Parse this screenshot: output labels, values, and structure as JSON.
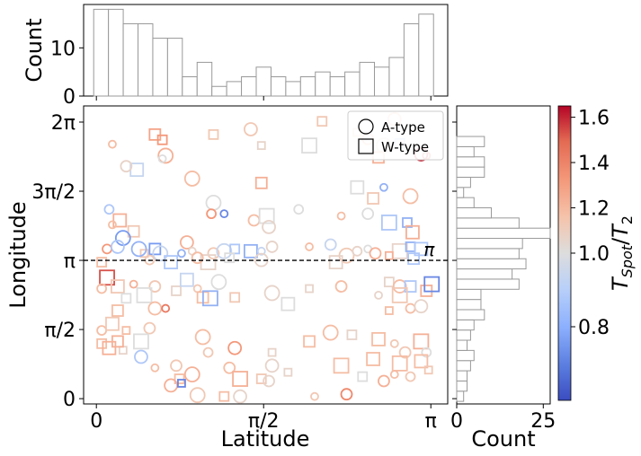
{
  "chart_data": [
    {
      "type": "scatter",
      "xlabel": "Latitude",
      "ylabel": "Longitude",
      "xlim": [
        -0.12,
        3.3
      ],
      "ylim": [
        -0.12,
        6.65
      ],
      "xticks": [
        {
          "v": 0,
          "label": "0"
        },
        {
          "v": 1.5708,
          "label": "π/2"
        },
        {
          "v": 3.1416,
          "label": "π"
        }
      ],
      "yticks": [
        {
          "v": 0,
          "label": "0"
        },
        {
          "v": 1.5708,
          "label": "π/2"
        },
        {
          "v": 3.1416,
          "label": "π"
        },
        {
          "v": 4.7124,
          "label": "3π/2"
        },
        {
          "v": 6.2832,
          "label": "2π"
        }
      ],
      "reference_line": {
        "y": 3.1416,
        "label": "π",
        "style": "dashed"
      },
      "legend": {
        "placement": "top-right",
        "entries": [
          {
            "label": "A-type",
            "marker": "circle"
          },
          {
            "label": "W-type",
            "marker": "square"
          }
        ]
      },
      "color_scale": {
        "label": "T_Spot/T_2",
        "range": [
          0.6,
          1.65
        ],
        "ticks": [
          0.8,
          1.0,
          1.2,
          1.4,
          1.6
        ],
        "colormap": "coolwarm"
      },
      "points": [
        {
          "x": 0.15,
          "y": 5.78,
          "m": "o",
          "c": 1.15
        },
        {
          "x": 0.55,
          "y": 6.0,
          "m": "s",
          "c": 1.25
        },
        {
          "x": 0.65,
          "y": 5.52,
          "m": "o",
          "c": 1.2
        },
        {
          "x": 0.62,
          "y": 5.88,
          "m": "s",
          "c": 1.3
        },
        {
          "x": 0.38,
          "y": 5.2,
          "m": "s",
          "c": 0.95
        },
        {
          "x": 0.62,
          "y": 5.45,
          "m": "o",
          "c": 1.0
        },
        {
          "x": 0.28,
          "y": 5.28,
          "m": "o",
          "c": 1.05
        },
        {
          "x": 0.9,
          "y": 5.0,
          "m": "o",
          "c": 1.15
        },
        {
          "x": 1.1,
          "y": 6.0,
          "m": "s",
          "c": 1.1
        },
        {
          "x": 1.45,
          "y": 6.12,
          "m": "o",
          "c": 1.1
        },
        {
          "x": 1.55,
          "y": 5.75,
          "m": "s",
          "c": 1.05
        },
        {
          "x": 1.55,
          "y": 4.9,
          "m": "s",
          "c": 1.2
        },
        {
          "x": 2.0,
          "y": 5.75,
          "m": "s",
          "c": 1.0
        },
        {
          "x": 2.12,
          "y": 6.3,
          "m": "s",
          "c": 1.1
        },
        {
          "x": 2.8,
          "y": 6.35,
          "m": "o",
          "c": 1.15
        },
        {
          "x": 2.45,
          "y": 6.05,
          "m": "s",
          "c": 1.1
        },
        {
          "x": 2.55,
          "y": 5.9,
          "m": "o",
          "c": 1.2
        },
        {
          "x": 2.7,
          "y": 5.75,
          "m": "o",
          "c": 1.05
        },
        {
          "x": 2.85,
          "y": 5.8,
          "m": "s",
          "c": 0.88
        },
        {
          "x": 3.05,
          "y": 5.55,
          "m": "o",
          "c": 1.6
        },
        {
          "x": 3.1,
          "y": 5.52,
          "m": "o",
          "c": 1.5
        },
        {
          "x": 2.65,
          "y": 5.48,
          "m": "s",
          "c": 1.2
        },
        {
          "x": 1.1,
          "y": 4.45,
          "m": "o",
          "c": 1.0
        },
        {
          "x": 1.08,
          "y": 4.2,
          "m": "o",
          "c": 1.3
        },
        {
          "x": 2.45,
          "y": 4.8,
          "m": "s",
          "c": 1.0
        },
        {
          "x": 2.7,
          "y": 4.8,
          "m": "o",
          "c": 0.85
        },
        {
          "x": 2.6,
          "y": 4.55,
          "m": "s",
          "c": 1.1
        },
        {
          "x": 2.95,
          "y": 4.6,
          "m": "o",
          "c": 1.15
        },
        {
          "x": 0.12,
          "y": 4.3,
          "m": "o",
          "c": 0.9
        },
        {
          "x": 0.22,
          "y": 4.05,
          "m": "s",
          "c": 1.2
        },
        {
          "x": 1.2,
          "y": 4.2,
          "m": "o",
          "c": 0.75
        },
        {
          "x": 1.48,
          "y": 4.05,
          "m": "o",
          "c": 1.15
        },
        {
          "x": 1.6,
          "y": 4.15,
          "m": "s",
          "c": 1.0
        },
        {
          "x": 1.9,
          "y": 4.3,
          "m": "o",
          "c": 1.0
        },
        {
          "x": 1.62,
          "y": 3.9,
          "m": "o",
          "c": 1.05
        },
        {
          "x": 2.3,
          "y": 4.15,
          "m": "o",
          "c": 1.15
        },
        {
          "x": 2.55,
          "y": 4.2,
          "m": "o",
          "c": 1.0
        },
        {
          "x": 2.75,
          "y": 4.0,
          "m": "s",
          "c": 0.9
        },
        {
          "x": 2.92,
          "y": 4.0,
          "m": "s",
          "c": 0.85
        },
        {
          "x": 2.97,
          "y": 3.78,
          "m": "s",
          "c": 1.2
        },
        {
          "x": 0.15,
          "y": 3.95,
          "m": "o",
          "c": 1.15
        },
        {
          "x": 0.35,
          "y": 3.8,
          "m": "s",
          "c": 1.1
        },
        {
          "x": 0.25,
          "y": 3.65,
          "m": "o",
          "c": 0.8
        },
        {
          "x": 0.1,
          "y": 3.4,
          "m": "o",
          "c": 1.3
        },
        {
          "x": 0.2,
          "y": 3.45,
          "m": "o",
          "c": 0.9
        },
        {
          "x": 0.45,
          "y": 3.3,
          "m": "s",
          "c": 1.1
        },
        {
          "x": 0.55,
          "y": 3.4,
          "m": "s",
          "c": 0.8
        },
        {
          "x": 0.6,
          "y": 3.3,
          "m": "o",
          "c": 0.95
        },
        {
          "x": 0.5,
          "y": 3.15,
          "m": "o",
          "c": 1.1
        },
        {
          "x": 0.85,
          "y": 3.55,
          "m": "o",
          "c": 1.2
        },
        {
          "x": 0.9,
          "y": 3.35,
          "m": "o",
          "c": 1.05
        },
        {
          "x": 1.1,
          "y": 3.3,
          "m": "o",
          "c": 1.1
        },
        {
          "x": 1.2,
          "y": 3.35,
          "m": "o",
          "c": 0.95
        },
        {
          "x": 1.3,
          "y": 3.4,
          "m": "s",
          "c": 0.9
        },
        {
          "x": 1.45,
          "y": 3.35,
          "m": "s",
          "c": 0.85
        },
        {
          "x": 1.55,
          "y": 3.35,
          "m": "o",
          "c": 0.95
        },
        {
          "x": 1.65,
          "y": 3.45,
          "m": "o",
          "c": 1.05
        },
        {
          "x": 1.05,
          "y": 3.1,
          "m": "s",
          "c": 1.05
        },
        {
          "x": 1.25,
          "y": 3.2,
          "m": "s",
          "c": 1.0
        },
        {
          "x": 0.7,
          "y": 3.1,
          "m": "s",
          "c": 0.9
        },
        {
          "x": 0.8,
          "y": 3.3,
          "m": "o",
          "c": 0.85
        },
        {
          "x": 0.95,
          "y": 3.2,
          "m": "o",
          "c": 1.15
        },
        {
          "x": 0.4,
          "y": 3.4,
          "m": "o",
          "c": 0.85
        },
        {
          "x": 0.05,
          "y": 3.1,
          "m": "s",
          "c": 1.15
        },
        {
          "x": 1.55,
          "y": 3.15,
          "m": "o",
          "c": 1.05
        },
        {
          "x": 2.0,
          "y": 3.45,
          "m": "o",
          "c": 1.15
        },
        {
          "x": 2.2,
          "y": 3.5,
          "m": "o",
          "c": 0.95
        },
        {
          "x": 2.35,
          "y": 3.25,
          "m": "o",
          "c": 1.1
        },
        {
          "x": 2.45,
          "y": 3.35,
          "m": "o",
          "c": 1.05
        },
        {
          "x": 2.25,
          "y": 3.1,
          "m": "s",
          "c": 1.05
        },
        {
          "x": 2.55,
          "y": 3.4,
          "m": "o",
          "c": 1.0
        },
        {
          "x": 2.62,
          "y": 3.3,
          "m": "o",
          "c": 1.2
        },
        {
          "x": 2.85,
          "y": 3.35,
          "m": "s",
          "c": 1.05
        },
        {
          "x": 2.95,
          "y": 3.45,
          "m": "s",
          "c": 0.85
        },
        {
          "x": 3.05,
          "y": 3.4,
          "m": "s",
          "c": 0.9
        },
        {
          "x": 2.75,
          "y": 3.25,
          "m": "s",
          "c": 1.2
        },
        {
          "x": 2.98,
          "y": 3.18,
          "m": "s",
          "c": 0.9
        },
        {
          "x": 0.1,
          "y": 2.75,
          "m": "s",
          "c": 1.5
        },
        {
          "x": 0.05,
          "y": 2.5,
          "m": "o",
          "c": 1.15
        },
        {
          "x": 0.2,
          "y": 2.55,
          "m": "s",
          "c": 1.1
        },
        {
          "x": 0.35,
          "y": 2.6,
          "m": "o",
          "c": 1.2
        },
        {
          "x": 0.55,
          "y": 2.55,
          "m": "o",
          "c": 1.1
        },
        {
          "x": 0.45,
          "y": 2.35,
          "m": "s",
          "c": 1.0
        },
        {
          "x": 0.75,
          "y": 2.45,
          "m": "s",
          "c": 1.05
        },
        {
          "x": 0.85,
          "y": 2.7,
          "m": "s",
          "c": 0.95
        },
        {
          "x": 0.95,
          "y": 2.5,
          "m": "o",
          "c": 1.1
        },
        {
          "x": 1.0,
          "y": 2.3,
          "m": "s",
          "c": 1.15
        },
        {
          "x": 1.15,
          "y": 2.65,
          "m": "o",
          "c": 1.0
        },
        {
          "x": 0.28,
          "y": 2.28,
          "m": "s",
          "c": 1.0
        },
        {
          "x": 0.55,
          "y": 2.05,
          "m": "o",
          "c": 1.15
        },
        {
          "x": 0.65,
          "y": 2.05,
          "m": "o",
          "c": 1.4
        },
        {
          "x": 0.2,
          "y": 2.0,
          "m": "s",
          "c": 1.15
        },
        {
          "x": 1.07,
          "y": 2.28,
          "m": "s",
          "c": 0.85
        },
        {
          "x": 1.3,
          "y": 2.3,
          "m": "s",
          "c": 1.1
        },
        {
          "x": 1.8,
          "y": 2.15,
          "m": "s",
          "c": 1.0
        },
        {
          "x": 2.0,
          "y": 2.5,
          "m": "s",
          "c": 1.05
        },
        {
          "x": 2.3,
          "y": 2.55,
          "m": "o",
          "c": 1.15
        },
        {
          "x": 1.65,
          "y": 2.4,
          "m": "o",
          "c": 1.05
        },
        {
          "x": 2.75,
          "y": 2.65,
          "m": "s",
          "c": 1.05
        },
        {
          "x": 2.85,
          "y": 2.55,
          "m": "o",
          "c": 1.15
        },
        {
          "x": 2.65,
          "y": 2.35,
          "m": "o",
          "c": 1.05
        },
        {
          "x": 2.95,
          "y": 2.55,
          "m": "s",
          "c": 0.9
        },
        {
          "x": 2.85,
          "y": 2.35,
          "m": "s",
          "c": 1.1
        },
        {
          "x": 2.95,
          "y": 2.05,
          "m": "o",
          "c": 1.15
        },
        {
          "x": 3.05,
          "y": 2.1,
          "m": "o",
          "c": 1.05
        },
        {
          "x": 2.75,
          "y": 2.0,
          "m": "s",
          "c": 1.15
        },
        {
          "x": 3.1,
          "y": 2.45,
          "m": "s",
          "c": 1.2
        },
        {
          "x": 3.15,
          "y": 2.6,
          "m": "s",
          "c": 0.75
        },
        {
          "x": 0.05,
          "y": 1.55,
          "m": "o",
          "c": 1.15
        },
        {
          "x": 0.15,
          "y": 1.7,
          "m": "s",
          "c": 1.1
        },
        {
          "x": 0.28,
          "y": 1.55,
          "m": "s",
          "c": 1.15
        },
        {
          "x": 0.5,
          "y": 1.6,
          "m": "o",
          "c": 1.1
        },
        {
          "x": 0.42,
          "y": 1.3,
          "m": "s",
          "c": 1.0
        },
        {
          "x": 0.05,
          "y": 1.25,
          "m": "s",
          "c": 1.15
        },
        {
          "x": 0.12,
          "y": 1.15,
          "m": "s",
          "c": 1.2
        },
        {
          "x": 0.25,
          "y": 1.1,
          "m": "s",
          "c": 1.05
        },
        {
          "x": 0.2,
          "y": 1.3,
          "m": "s",
          "c": 1.2
        },
        {
          "x": 1.0,
          "y": 1.4,
          "m": "o",
          "c": 1.15
        },
        {
          "x": 1.05,
          "y": 1.05,
          "m": "o",
          "c": 1.1
        },
        {
          "x": 1.3,
          "y": 1.15,
          "m": "o",
          "c": 1.3
        },
        {
          "x": 1.65,
          "y": 1.05,
          "m": "s",
          "c": 1.05
        },
        {
          "x": 2.0,
          "y": 1.3,
          "m": "s",
          "c": 1.15
        },
        {
          "x": 2.2,
          "y": 1.5,
          "m": "o",
          "c": 1.15
        },
        {
          "x": 2.4,
          "y": 1.45,
          "m": "s",
          "c": 1.05
        },
        {
          "x": 2.65,
          "y": 1.35,
          "m": "s",
          "c": 1.15
        },
        {
          "x": 2.8,
          "y": 1.25,
          "m": "o",
          "c": 1.1
        },
        {
          "x": 2.9,
          "y": 1.05,
          "m": "o",
          "c": 1.1
        },
        {
          "x": 3.05,
          "y": 1.3,
          "m": "s",
          "c": 1.2
        },
        {
          "x": 3.1,
          "y": 1.05,
          "m": "o",
          "c": 1.0
        },
        {
          "x": 0.42,
          "y": 0.95,
          "m": "o",
          "c": 0.9
        },
        {
          "x": 0.55,
          "y": 0.7,
          "m": "o",
          "c": 1.15
        },
        {
          "x": 0.75,
          "y": 0.75,
          "m": "o",
          "c": 1.1
        },
        {
          "x": 0.9,
          "y": 0.55,
          "m": "o",
          "c": 1.2
        },
        {
          "x": 0.78,
          "y": 0.45,
          "m": "s",
          "c": 1.15
        },
        {
          "x": 0.7,
          "y": 0.3,
          "m": "o",
          "c": 1.2
        },
        {
          "x": 0.8,
          "y": 0.35,
          "m": "s",
          "c": 0.75
        },
        {
          "x": 1.25,
          "y": 0.7,
          "m": "o",
          "c": 1.15
        },
        {
          "x": 1.35,
          "y": 0.45,
          "m": "s",
          "c": 1.2
        },
        {
          "x": 1.55,
          "y": 0.45,
          "m": "s",
          "c": 1.1
        },
        {
          "x": 1.65,
          "y": 0.75,
          "m": "o",
          "c": 1.05
        },
        {
          "x": 1.8,
          "y": 0.6,
          "m": "s",
          "c": 1.05
        },
        {
          "x": 1.62,
          "y": 0.4,
          "m": "o",
          "c": 1.05
        },
        {
          "x": 2.3,
          "y": 0.75,
          "m": "s",
          "c": 1.15
        },
        {
          "x": 2.5,
          "y": 0.5,
          "m": "s",
          "c": 1.0
        },
        {
          "x": 2.6,
          "y": 0.9,
          "m": "s",
          "c": 1.15
        },
        {
          "x": 2.8,
          "y": 0.55,
          "m": "o",
          "c": 1.15
        },
        {
          "x": 2.7,
          "y": 0.4,
          "m": "o",
          "c": 1.2
        },
        {
          "x": 2.85,
          "y": 0.8,
          "m": "s",
          "c": 1.15
        },
        {
          "x": 2.95,
          "y": 0.5,
          "m": "o",
          "c": 1.1
        },
        {
          "x": 3.05,
          "y": 0.85,
          "m": "s",
          "c": 1.15
        },
        {
          "x": 3.12,
          "y": 0.65,
          "m": "s",
          "c": 1.1
        },
        {
          "x": 2.35,
          "y": 0.1,
          "m": "o",
          "c": 1.35
        },
        {
          "x": 0.95,
          "y": 0.08,
          "m": "o",
          "c": 1.1
        },
        {
          "x": 1.2,
          "y": 0.05,
          "m": "s",
          "c": 1.15
        },
        {
          "x": 1.35,
          "y": 0.05,
          "m": "o",
          "c": 1.05
        },
        {
          "x": 2.05,
          "y": 0.05,
          "m": "o",
          "c": 1.1
        }
      ]
    },
    {
      "type": "bar",
      "orientation": "vertical",
      "ylabel": "Count",
      "ylim": [
        0,
        19
      ],
      "yticks": [
        0,
        10
      ],
      "values": [
        18,
        18,
        15,
        15,
        12,
        12,
        4,
        7,
        2,
        3,
        4,
        6,
        4,
        3,
        4,
        5,
        4,
        5,
        7,
        6,
        8,
        15,
        17
      ]
    },
    {
      "type": "bar",
      "orientation": "horizontal",
      "xlabel": "Count",
      "xlim": [
        0,
        27
      ],
      "xticks": [
        0,
        25
      ],
      "values_bottom_to_top": [
        2,
        3,
        3,
        4,
        5,
        3,
        4,
        5,
        8,
        7,
        7,
        18,
        16,
        20,
        18,
        19,
        27,
        18,
        10,
        5,
        2,
        4,
        8,
        8,
        5,
        8,
        0,
        0,
        0
      ]
    }
  ]
}
